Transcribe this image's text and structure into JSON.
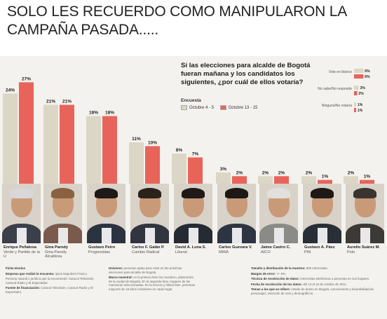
{
  "caption": "SOLO LES RECUERDO COMO MANIPULARON LA CAMPAÑA PASADA.....",
  "question": "Si las elecciones para alcalde de Bogotá fueran mañana y los candidatos los siguientes, ¿por cuál de ellos votaría?",
  "legend": {
    "title": "Encuesta",
    "items": [
      "Octubre 4 - 5",
      "Octubre 13 - 15"
    ]
  },
  "colors": {
    "series1": "#dcd6c6",
    "series2": "#e8645a",
    "background": "#f4f2ee"
  },
  "chart_data": {
    "type": "bar",
    "categories": [
      "Enrique Peñalosa",
      "Gina Parody",
      "Gustavo Petro",
      "Carlos F. Galán P.",
      "David A. Luna S.",
      "Carlos Guevara V.",
      "Jaime Castro C.",
      "Gustavo A. Páez",
      "Aurelio Suárez M."
    ],
    "series": [
      {
        "name": "Octubre 4 - 5",
        "values": [
          24,
          21,
          18,
          11,
          8,
          3,
          2,
          2,
          2
        ]
      },
      {
        "name": "Octubre 13 - 15",
        "values": [
          27,
          21,
          18,
          10,
          7,
          2,
          2,
          1,
          1
        ]
      }
    ],
    "value_labels": [
      [
        "24%",
        "21%",
        "18%",
        "11%",
        "8%",
        "3%",
        "2%",
        "2%",
        "2%"
      ],
      [
        "27%",
        "21%",
        "18%",
        "10%",
        "7%",
        "2%",
        "2%",
        "1%",
        "1%"
      ]
    ],
    "ylim": [
      0,
      28
    ],
    "grid": false,
    "legend_position": "top-center"
  },
  "side_chart": {
    "type": "bar",
    "categories": [
      "Voto en blanco",
      "No sabe/No responde",
      "Ninguno/No votaría"
    ],
    "series": [
      {
        "name": "Octubre 4 - 5",
        "values": [
          6,
          3,
          1
        ]
      },
      {
        "name": "Octubre 13 - 15",
        "values": [
          6,
          2,
          1
        ]
      }
    ],
    "value_labels": [
      [
        "6%",
        "3%",
        "1%"
      ],
      [
        "6%",
        "2%",
        "1%"
      ]
    ]
  },
  "candidates": [
    {
      "name": "Enrique Peñalosa",
      "party": "Verde y Partido de la U"
    },
    {
      "name": "Gina Parody",
      "party": "Gina Parody Alcaldesa"
    },
    {
      "name": "Gustavo Petro",
      "party": "Progresistas"
    },
    {
      "name": "Carlos F. Galán P.",
      "party": "Cambio Radical"
    },
    {
      "name": "David A. Luna S.",
      "party": "Liberal"
    },
    {
      "name": "Carlos Guevara V.",
      "party": "MIRA"
    },
    {
      "name": "Jaime Castro C.",
      "party": "AICO"
    },
    {
      "name": "Gustavo A. Páez",
      "party": "PIN"
    },
    {
      "name": "Aurelio Suárez M.",
      "party": "Polo"
    }
  ],
  "ficha": {
    "title": "Ficha técnica",
    "col1": [
      {
        "label": "Empresa que realizó la encuesta:",
        "text": "Ipsos Napoleón Franco"
      },
      {
        "label": "",
        "text": "Persona natural o jurídica que la encomendó: Caracol Televisión, Caracol Radio y El Espectador."
      },
      {
        "label": "Fuente de financiación:",
        "text": "Caracol Televisión, Caracol Radio y El Espectador."
      }
    ],
    "col2": [
      {
        "label": "Universo:",
        "text": "personas aptas para votar en las próximas elecciones para alcalde de Bogotá."
      },
      {
        "label": "Marco muestral:",
        "text": "en la primera fase los muestreo, planimetría de la ciudad de Bogotá. En la segunda fase, hogares de las manzanas seleccionadas. En la tercera y última fase, personas mayores de 18 años residentes en cada hogar."
      }
    ],
    "col3": [
      {
        "label": "Tamaño y distribución de la muestra:",
        "text": "600 entrevistas."
      },
      {
        "label": "Margen de error:",
        "text": "+/- 5%."
      },
      {
        "label": "Técnica de recolección de datos:",
        "text": "entrevistas telefónicas a personas en sus hogares."
      },
      {
        "label": "Fecha de recolección de los datos:",
        "text": "del 13 al 15 de octubre de 2011."
      },
      {
        "label": "Temas a los que se refiere:",
        "text": "estado de ánimo en Bogotá, conocimiento y favorabilidad de personajes, intención de voto y demográficos."
      }
    ]
  }
}
